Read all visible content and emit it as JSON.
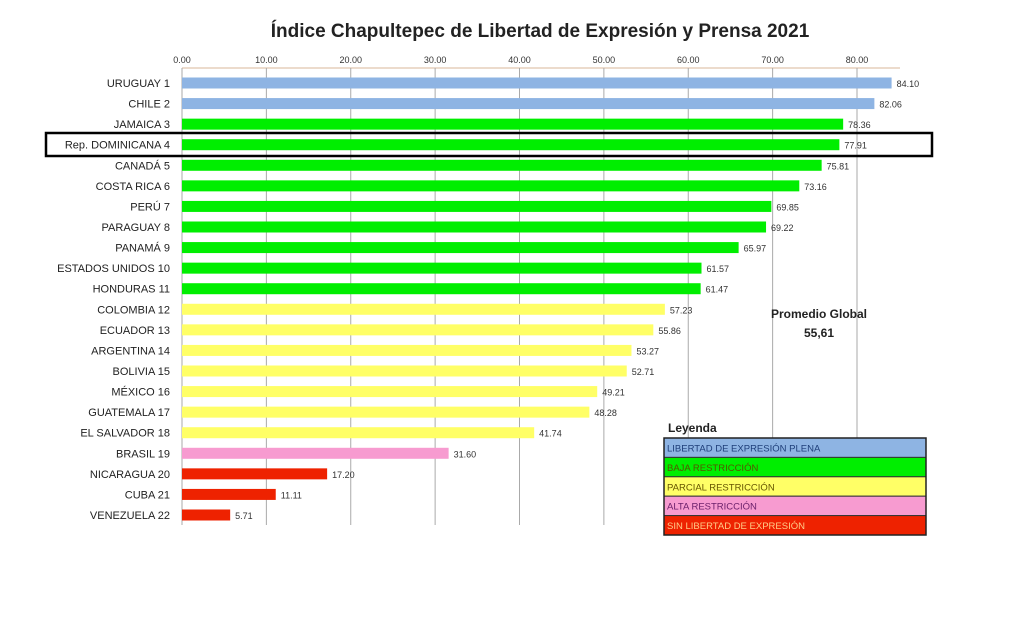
{
  "chart_data": {
    "type": "bar",
    "orientation": "horizontal",
    "title": "Índice Chapultepec de Libertad de Expresión y Prensa 2021",
    "xlim": [
      0,
      84
    ],
    "x_ticks": [
      "0.00",
      "10.00",
      "20.00",
      "30.00",
      "40.00",
      "50.00",
      "60.00",
      "70.00",
      "80.00"
    ],
    "grid": true,
    "categories": [
      "URUGUAY 1",
      "CHILE 2",
      "JAMAICA 3",
      "Rep. DOMINICANA 4",
      "CANADÁ 5",
      "COSTA RICA 6",
      "PERÚ 7",
      "PARAGUAY 8",
      "PANAMÁ 9",
      "ESTADOS UNIDOS 10",
      "HONDURAS 11",
      "COLOMBIA 12",
      "ECUADOR 13",
      "ARGENTINA 14",
      "BOLIVIA 15",
      "MÉXICO 16",
      "GUATEMALA 17",
      "EL SALVADOR 18",
      "BRASIL 19",
      "NICARAGUA 20",
      "CUBA 21",
      "VENEZUELA 22"
    ],
    "values": [
      84.1,
      82.06,
      78.36,
      77.91,
      75.81,
      73.16,
      69.85,
      69.22,
      65.97,
      61.57,
      61.47,
      57.23,
      55.86,
      53.27,
      52.71,
      49.21,
      48.28,
      41.74,
      31.6,
      17.2,
      11.11,
      5.71
    ],
    "value_labels": [
      "84.10",
      "82.06",
      "78.36",
      "77.91",
      "75.81",
      "73.16",
      "69.85",
      "69.22",
      "65.97",
      "61.57",
      "61.47",
      "57.23",
      "55.86",
      "53.27",
      "52.71",
      "49.21",
      "48.28",
      "41.74",
      "31.60",
      "17.20",
      "11.11",
      "5.71"
    ],
    "classes": [
      0,
      0,
      1,
      1,
      1,
      1,
      1,
      1,
      1,
      1,
      1,
      2,
      2,
      2,
      2,
      2,
      2,
      2,
      3,
      4,
      4,
      4
    ],
    "highlighted_index": 3,
    "annotation": {
      "label": "Promedio Global",
      "value": "55,61"
    },
    "legend": {
      "title": "Leyenda",
      "placement": "bottom-right",
      "entries": [
        {
          "label": "LIBERTAD DE EXPRESIÓN PLENA",
          "color": "#8eb4e3",
          "text_color": "#1f3f7a"
        },
        {
          "label": "BAJA RESTRICCIÓN",
          "color": "#00ee00",
          "text_color": "#555500"
        },
        {
          "label": "PARCIAL RESTRICCIÓN",
          "color": "#ffff66",
          "text_color": "#665500"
        },
        {
          "label": "ALTA RESTRICCIÓN",
          "color": "#f79bd0",
          "text_color": "#6a1f6a"
        },
        {
          "label": "SIN LIBERTAD DE EXPRESIÓN",
          "color": "#ee2200",
          "text_color": "#ffcc88"
        }
      ]
    }
  }
}
